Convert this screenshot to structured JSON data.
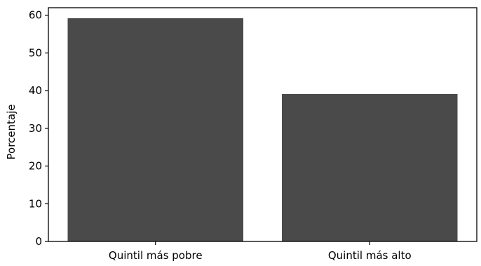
{
  "chart_data": {
    "type": "bar",
    "categories": [
      "Quintil más pobre",
      "Quintil más alto"
    ],
    "values": [
      59.2,
      39.1
    ],
    "title": "",
    "xlabel": "",
    "ylabel": "Porcentaje",
    "ylim": [
      0,
      62
    ],
    "yticks": [
      0,
      10,
      20,
      30,
      40,
      50,
      60
    ],
    "grid": false,
    "bar_color": "#4a4a4a"
  }
}
